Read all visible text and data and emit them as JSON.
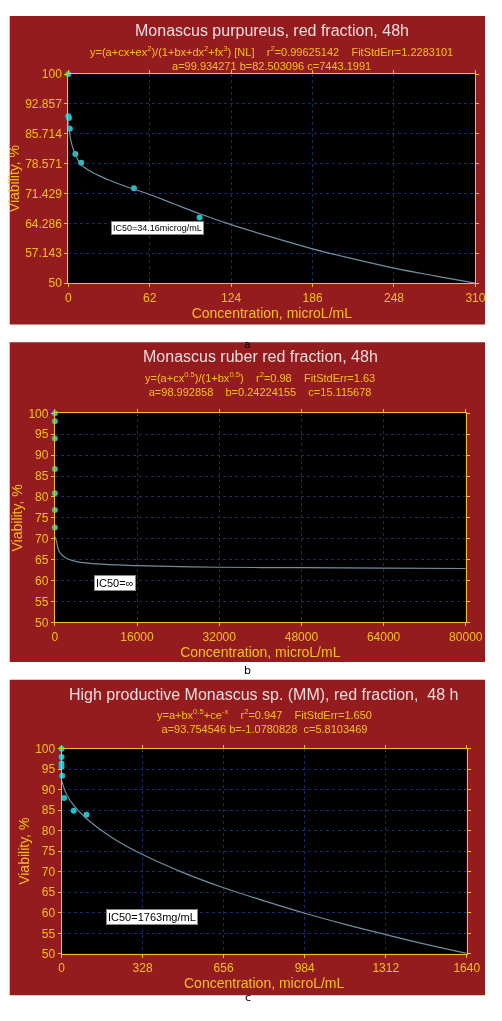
{
  "chart_data": [
    {
      "type": "scatter",
      "title": "Monascus purpureus, red fraction, 48h",
      "subtitle": "y=(a+cx+ex$^{2}$)/(1+bx+dx$^{2}$+fx$^{3}$) [NL]    r$^{2}$=0.99625142    FitStdErr=1.2283101\na=99.934271 b=82.503096 c=7443.1991",
      "xlabel": "Concentration, microL/mL",
      "ylabel": "Viability, %",
      "xlim": [
        0,
        310
      ],
      "xticks": [
        0,
        62,
        124,
        186,
        248,
        310
      ],
      "ylim": [
        50,
        100
      ],
      "yticks": [
        50,
        57.143,
        64.286,
        71.429,
        78.571,
        85.714,
        92.857,
        100
      ],
      "grid": true,
      "series": [
        {
          "marker": "circle",
          "color": "#20c0c8",
          "x": [
            0,
            0,
            0.5,
            1.2,
            5.4,
            9.8,
            50,
            100
          ],
          "values": [
            100,
            89.9,
            89.5,
            86.9,
            80.9,
            78.8,
            72.7,
            65.7
          ]
        },
        {
          "type": "line",
          "line_style": "solid",
          "color": "#6f8fa0",
          "x": [
            0,
            2,
            5,
            10,
            20,
            30,
            45,
            62,
            80,
            100,
            124,
            155,
            186,
            217,
            248,
            280,
            310
          ],
          "values": [
            89,
            84,
            81,
            78.3,
            76.2,
            74.8,
            73.0,
            71.2,
            69.0,
            66.6,
            64.0,
            61.0,
            58.2,
            55.8,
            53.6,
            51.7,
            50
          ]
        }
      ],
      "annotations": [
        "IC50=34.16microg/mL",
        "a"
      ]
    },
    {
      "type": "scatter",
      "title": "Monascus ruber red fraction, 48h",
      "subtitle": "y=(a+cx$^{0.5}$)/(1+bx$^{0.5}$)    r$^{2}$=0.98    FitStdErr=1.63\na=98.992858    b=0.24224155    c=15.115678",
      "xlabel": "Concentration, microL/mL",
      "ylabel": "Viability, %",
      "xlim": [
        0,
        80000
      ],
      "xticks": [
        0,
        16000,
        32000,
        48000,
        64000,
        80000
      ],
      "ylim": [
        50,
        100
      ],
      "yticks": [
        50,
        55,
        60,
        65,
        70,
        75,
        80,
        85,
        90,
        95,
        100
      ],
      "grid": true,
      "series": [
        {
          "marker": "circle",
          "color": "#20c0c8",
          "x": [
            0,
            0,
            0,
            0,
            0,
            0,
            0
          ],
          "values": [
            100,
            98.1,
            94.0,
            86.7,
            80.9,
            76.9,
            72.7
          ]
        },
        {
          "type": "line",
          "line_style": "solid",
          "color": "#6f8fa0",
          "x": [
            0,
            300,
            800,
            2000,
            4000,
            8000,
            16000,
            32000,
            48000,
            64000,
            80000
          ],
          "values": [
            70.5,
            69.5,
            67.1,
            65.5,
            64.6,
            64.0,
            63.6,
            63.2,
            63.1,
            63.0,
            62.9
          ]
        }
      ],
      "annotations": [
        "IC50=∞",
        "b"
      ]
    },
    {
      "type": "scatter",
      "title": "High productive Monascus sp. (MM), red fraction,  48 h",
      "subtitle": "y=a+bx$^{0.5}$+ce$^{-x}$    r$^{2}$=0.947    FitStdErr=1.650\na=93.754546 b=-1.0780828  c=5.8103469",
      "xlabel": "Concentration, microL/mL",
      "ylabel": "Viability, %",
      "xlim": [
        0,
        1640
      ],
      "xticks": [
        0,
        328,
        656,
        984,
        1312,
        1640
      ],
      "ylim": [
        50,
        100
      ],
      "yticks": [
        50,
        55,
        60,
        65,
        70,
        75,
        80,
        85,
        90,
        95,
        100
      ],
      "grid": true,
      "series": [
        {
          "marker": "circle",
          "color": "#20c0c8",
          "x": [
            0,
            0,
            0,
            0,
            2.6,
            10,
            49,
            101
          ],
          "values": [
            100,
            98.0,
            96.4,
            95.6,
            93.4,
            88.0,
            84.9,
            83.9
          ]
        },
        {
          "type": "line",
          "line_style": "solid",
          "color": "#6f8fa0",
          "x": [
            0,
            5,
            20,
            50,
            100,
            200,
            328,
            492,
            656,
            820,
            984,
            1148,
            1312,
            1476,
            1640
          ],
          "values": [
            92.3,
            91.3,
            88.9,
            86.1,
            83.0,
            78.5,
            74.2,
            69.8,
            66.1,
            62.9,
            59.9,
            57.2,
            54.7,
            52.3,
            50.1
          ]
        }
      ],
      "annotations": [
        "IC50=1763mg/mL",
        "c"
      ]
    }
  ]
}
